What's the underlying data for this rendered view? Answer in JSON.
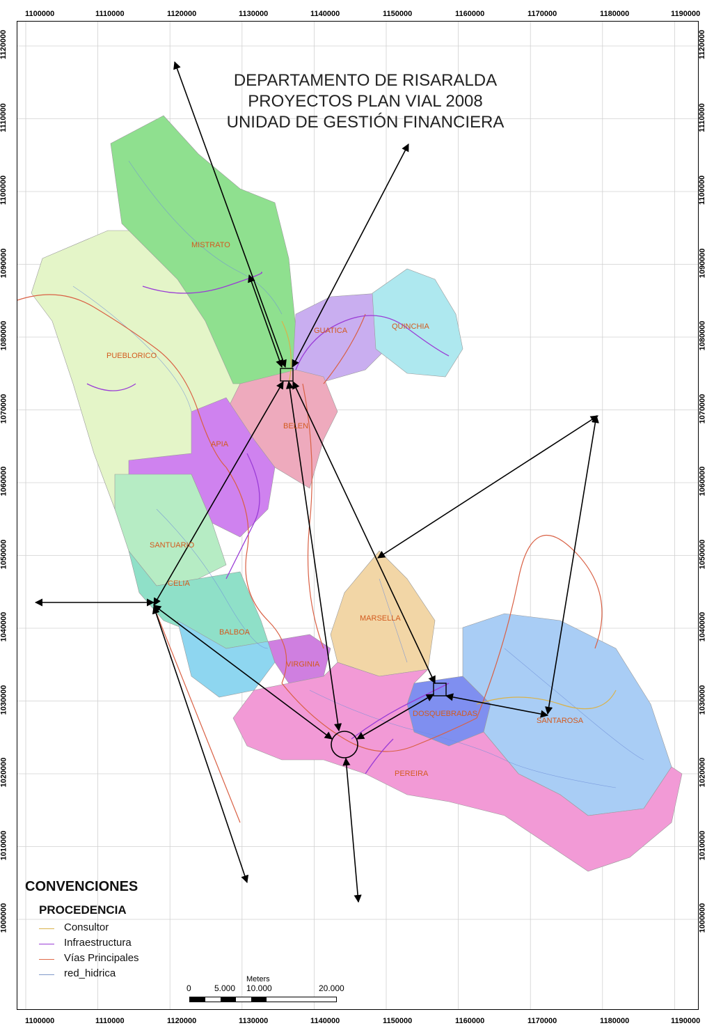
{
  "title": {
    "line1": "DEPARTAMENTO DE RISARALDA",
    "line2": "PROYECTOS PLAN VIAL 2008",
    "line3": "UNIDAD DE GESTIÓN FINANCIERA"
  },
  "grid": {
    "x_labels": [
      "1100000",
      "1110000",
      "1120000",
      "1130000",
      "1140000",
      "1150000",
      "1160000",
      "1170000",
      "1180000",
      "1190000"
    ],
    "y_labels": [
      "1120000",
      "1110000",
      "1100000",
      "1090000",
      "1080000",
      "1070000",
      "1060000",
      "1050000",
      "1040000",
      "1030000",
      "1020000",
      "1010000",
      "1000000"
    ]
  },
  "municipalities": [
    {
      "name": "MISTRATO",
      "color": "#8fe08f"
    },
    {
      "name": "PUEBLORICO",
      "color": "#e4f5c8"
    },
    {
      "name": "GUATICA",
      "color": "#c9aef0"
    },
    {
      "name": "QUINCHIA",
      "color": "#aee8ef"
    },
    {
      "name": "BELEN",
      "color": "#eeaabd"
    },
    {
      "name": "APIA",
      "color": "#cf82ef"
    },
    {
      "name": "SANTUARIO",
      "color": "#b6ecc4"
    },
    {
      "name": "CELIA",
      "color": "#8fe0c8"
    },
    {
      "name": "BALBOA",
      "color": "#8ed6f0"
    },
    {
      "name": "VIRGINIA",
      "color": "#cf7fe0"
    },
    {
      "name": "MARSELLA",
      "color": "#f2d6a6"
    },
    {
      "name": "DOSQUEBRADAS",
      "color": "#7f8ff0"
    },
    {
      "name": "SANTAROSA",
      "color": "#a9cdf5"
    },
    {
      "name": "PEREIRA",
      "color": "#f29ad6"
    }
  ],
  "legend": {
    "title": "CONVENCIONES",
    "subtitle": "PROCEDENCIA",
    "items": [
      {
        "label": "Consultor",
        "color": "#d9b24a"
      },
      {
        "label": "Infraestructura",
        "color": "#9a3cd6"
      },
      {
        "label": "Vías Principales",
        "color": "#e06a4a"
      },
      {
        "label": "red_hidrica",
        "color": "#7f98c8"
      }
    ]
  },
  "scale": {
    "unit": "Meters",
    "ticks": [
      "0",
      "5.000",
      "10.000",
      "20.000"
    ]
  }
}
